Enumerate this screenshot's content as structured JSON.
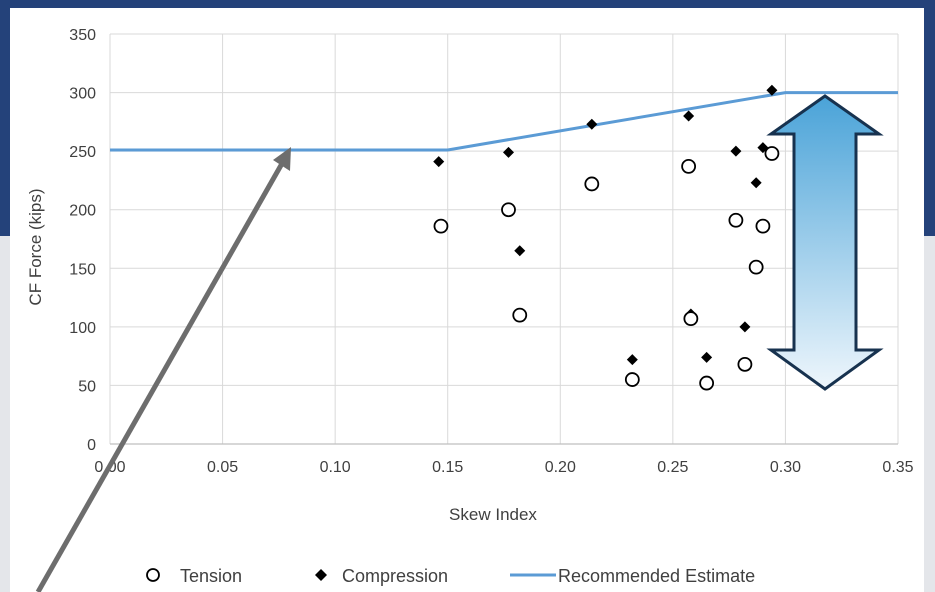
{
  "chart_data": {
    "type": "scatter",
    "xlabel": "Skew Index",
    "ylabel": "CF Force (kips)",
    "xlim": [
      0,
      0.35
    ],
    "ylim": [
      0,
      350
    ],
    "xticks": [
      "0.00",
      "0.05",
      "0.10",
      "0.15",
      "0.20",
      "0.25",
      "0.30",
      "0.35"
    ],
    "yticks": [
      "0",
      "50",
      "100",
      "150",
      "200",
      "250",
      "300",
      "350"
    ],
    "grid": true,
    "legend_position": "bottom",
    "series": [
      {
        "name": "Tension",
        "marker": "open-circle",
        "color": "#000000",
        "points": [
          [
            0.147,
            186
          ],
          [
            0.177,
            200
          ],
          [
            0.182,
            110
          ],
          [
            0.214,
            222
          ],
          [
            0.232,
            55
          ],
          [
            0.257,
            237
          ],
          [
            0.258,
            107
          ],
          [
            0.265,
            52
          ],
          [
            0.278,
            191
          ],
          [
            0.282,
            68
          ],
          [
            0.287,
            151
          ],
          [
            0.29,
            186
          ],
          [
            0.294,
            248
          ]
        ]
      },
      {
        "name": "Compression",
        "marker": "filled-diamond",
        "color": "#000000",
        "points": [
          [
            0.146,
            241
          ],
          [
            0.177,
            249
          ],
          [
            0.182,
            165
          ],
          [
            0.214,
            273
          ],
          [
            0.232,
            72
          ],
          [
            0.257,
            280
          ],
          [
            0.258,
            111
          ],
          [
            0.265,
            74
          ],
          [
            0.278,
            250
          ],
          [
            0.282,
            100
          ],
          [
            0.287,
            223
          ],
          [
            0.29,
            253
          ],
          [
            0.294,
            302
          ]
        ]
      },
      {
        "name": "Recommended Estimate",
        "marker": "line",
        "color": "#5b9bd5",
        "points": [
          [
            0.0,
            251
          ],
          [
            0.15,
            251
          ],
          [
            0.3,
            300
          ],
          [
            0.35,
            300
          ]
        ]
      }
    ]
  }
}
